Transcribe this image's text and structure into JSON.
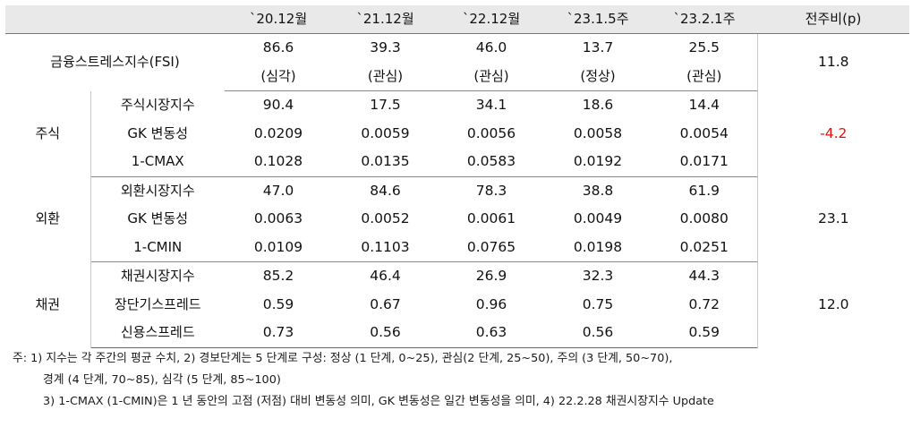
{
  "header": {
    "blank": "",
    "cols": [
      "`20.12월",
      "`21.12월",
      "`22.12월",
      "`23.1.5주",
      "`23.2.1주"
    ],
    "change": "전주비(p)"
  },
  "fsi": {
    "label": "금융스트레스지수(FSI)",
    "values": [
      "86.6",
      "39.3",
      "46.0",
      "13.7",
      "25.5"
    ],
    "stages": [
      "(심각)",
      "(관심)",
      "(관심)",
      "(정상)",
      "(관심)"
    ],
    "change": "11.8"
  },
  "groups": [
    {
      "label": "주식",
      "change": "-4.2",
      "change_color": "#e01010",
      "rows": [
        {
          "label": "주식시장지수",
          "values": [
            "90.4",
            "17.5",
            "34.1",
            "18.6",
            "14.4"
          ]
        },
        {
          "label": "GK 변동성",
          "values": [
            "0.0209",
            "0.0059",
            "0.0056",
            "0.0058",
            "0.0054"
          ]
        },
        {
          "label": "1-CMAX",
          "values": [
            "0.1028",
            "0.0135",
            "0.0583",
            "0.0192",
            "0.0171"
          ]
        }
      ]
    },
    {
      "label": "외환",
      "change": "23.1",
      "rows": [
        {
          "label": "외환시장지수",
          "values": [
            "47.0",
            "84.6",
            "78.3",
            "38.8",
            "61.9"
          ]
        },
        {
          "label": "GK 변동성",
          "values": [
            "0.0063",
            "0.0052",
            "0.0061",
            "0.0049",
            "0.0080"
          ]
        },
        {
          "label": "1-CMIN",
          "values": [
            "0.0109",
            "0.1103",
            "0.0765",
            "0.0198",
            "0.0251"
          ]
        }
      ]
    },
    {
      "label": "채권",
      "change": "12.0",
      "rows": [
        {
          "label": "채권시장지수",
          "values": [
            "85.2",
            "46.4",
            "26.9",
            "32.3",
            "44.3"
          ]
        },
        {
          "label": "장단기스프레드",
          "values": [
            "0.59",
            "0.67",
            "0.96",
            "0.75",
            "0.72"
          ]
        },
        {
          "label": "신용스프레드",
          "values": [
            "0.73",
            "0.56",
            "0.63",
            "0.56",
            "0.59"
          ]
        }
      ]
    }
  ],
  "notes": [
    "주: 1) 지수는 각 주간의 평균 수치, 2) 경보단계는 5 단계로 구성: 정상 (1 단계, 0~25), 관심(2 단계, 25~50), 주의 (3 단계, 50~70),",
    "경계 (4 단계, 70~85), 심각 (5 단계, 85~100)",
    "3) 1-CMAX (1-CMIN)은 1 년 동안의 고점 (저점) 대비 변동성 의미, GK 변동성은 일간 변동성을 의미, 4) 22.2.28 채권시장지수 Update"
  ]
}
